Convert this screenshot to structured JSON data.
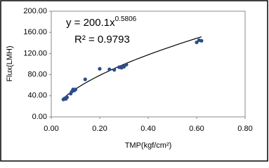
{
  "chart_data": {
    "type": "scatter",
    "x_label": "TMP(kgf/cm²)",
    "y_label": "Flux(LMH)",
    "x": [
      0.05,
      0.055,
      0.06,
      0.065,
      0.08,
      0.085,
      0.09,
      0.095,
      0.1,
      0.14,
      0.2,
      0.24,
      0.26,
      0.28,
      0.29,
      0.3,
      0.31,
      0.6,
      0.61,
      0.62
    ],
    "values": [
      33,
      35,
      34,
      37,
      44,
      48,
      52,
      50,
      52,
      71,
      91,
      90,
      89,
      94,
      93,
      95,
      99,
      141,
      145,
      144
    ],
    "color": "#2b4c8c",
    "xlim": [
      0,
      0.8
    ],
    "ylim": [
      0,
      200
    ],
    "xticks": [
      {
        "value": 0,
        "label": "0.00"
      },
      {
        "value": 0.2,
        "label": "0.20"
      },
      {
        "value": 0.4,
        "label": "0.40"
      },
      {
        "value": 0.6,
        "label": "0.60"
      },
      {
        "value": 0.8,
        "label": "0.80"
      }
    ],
    "yticks": [
      {
        "value": 0,
        "label": "0.00"
      },
      {
        "value": 40,
        "label": "40.00"
      },
      {
        "value": 80,
        "label": "80.00"
      },
      {
        "value": 120,
        "label": "120.00"
      },
      {
        "value": 160,
        "label": "160.00"
      },
      {
        "value": 200,
        "label": "200.00"
      }
    ],
    "grid": false,
    "trendline": {
      "equation_label": "y = 200.1x",
      "exponent_label": "0.5806",
      "r2_label": "R² = 0.9793",
      "coefficient": 200.1,
      "exponent": 0.5806,
      "color": "#000000"
    }
  }
}
